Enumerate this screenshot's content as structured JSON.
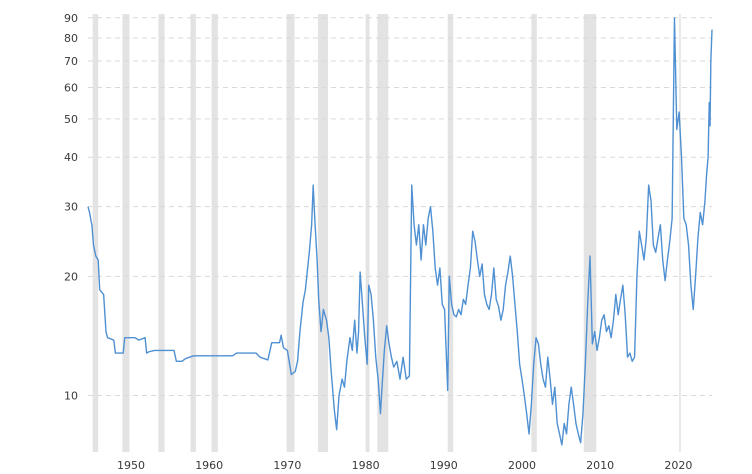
{
  "chart_data": {
    "type": "line",
    "title": "",
    "xlabel": "",
    "ylabel": "",
    "y_scale": "log",
    "ylim": [
      7.2,
      92
    ],
    "xlim": [
      1944.5,
      2024.3
    ],
    "y_ticks": [
      {
        "value": 10,
        "label": "10"
      },
      {
        "value": 20,
        "label": "20"
      },
      {
        "value": 30,
        "label": "30"
      },
      {
        "value": 40,
        "label": "40"
      },
      {
        "value": 50,
        "label": "50"
      },
      {
        "value": 60,
        "label": "60"
      },
      {
        "value": 70,
        "label": "70"
      },
      {
        "value": 80,
        "label": "80"
      },
      {
        "value": 90,
        "label": "90"
      }
    ],
    "x_ticks": [
      {
        "value": 1950,
        "label": "1950"
      },
      {
        "value": 1960,
        "label": "1960"
      },
      {
        "value": 1970,
        "label": "1970"
      },
      {
        "value": 1980,
        "label": "1980"
      },
      {
        "value": 1990,
        "label": "1990"
      },
      {
        "value": 2000,
        "label": "2000"
      },
      {
        "value": 2010,
        "label": "2010"
      },
      {
        "value": 2020,
        "label": "2020"
      }
    ],
    "grid": true,
    "recessions": [
      [
        1945.1,
        1945.8
      ],
      [
        1948.9,
        1949.8
      ],
      [
        1953.5,
        1954.3
      ],
      [
        1957.6,
        1958.3
      ],
      [
        1960.3,
        1961.1
      ],
      [
        1969.9,
        1970.9
      ],
      [
        1973.9,
        1975.2
      ],
      [
        1980.0,
        1980.5
      ],
      [
        1981.5,
        1982.9
      ],
      [
        1990.5,
        1991.2
      ],
      [
        2001.2,
        2001.9
      ],
      [
        2007.9,
        2009.5
      ],
      [
        2020.1,
        2020.3
      ]
    ],
    "colors": {
      "line": "#4f90d2",
      "recession": "#e3e3e3",
      "grid": "#d9d9d9",
      "text": "#3a3a3a"
    },
    "series": [
      {
        "values": [
          [
            1944.5,
            30
          ],
          [
            1944.7,
            29
          ],
          [
            1944.9,
            27.5
          ],
          [
            1945.0,
            27
          ],
          [
            1945.2,
            24
          ],
          [
            1945.5,
            22.5
          ],
          [
            1945.8,
            22
          ],
          [
            1946.0,
            18.5
          ],
          [
            1946.5,
            18
          ],
          [
            1946.8,
            14.5
          ],
          [
            1947.0,
            14
          ],
          [
            1947.8,
            13.8
          ],
          [
            1948.0,
            12.8
          ],
          [
            1949.0,
            12.8
          ],
          [
            1949.2,
            14
          ],
          [
            1950.5,
            14
          ],
          [
            1951.0,
            13.8
          ],
          [
            1951.8,
            14
          ],
          [
            1952.0,
            12.8
          ],
          [
            1952.3,
            12.9
          ],
          [
            1953.0,
            13
          ],
          [
            1955.5,
            13
          ],
          [
            1955.8,
            12.2
          ],
          [
            1956.5,
            12.2
          ],
          [
            1957.0,
            12.4
          ],
          [
            1958.0,
            12.6
          ],
          [
            1963.0,
            12.6
          ],
          [
            1963.5,
            12.8
          ],
          [
            1966.0,
            12.8
          ],
          [
            1966.5,
            12.5
          ],
          [
            1967.5,
            12.3
          ],
          [
            1968.0,
            13.6
          ],
          [
            1969.0,
            13.6
          ],
          [
            1969.2,
            14.2
          ],
          [
            1969.5,
            13.2
          ],
          [
            1970.0,
            13.0
          ],
          [
            1970.5,
            11.3
          ],
          [
            1971.0,
            11.5
          ],
          [
            1971.3,
            12.2
          ],
          [
            1971.6,
            14.5
          ],
          [
            1972.0,
            17.2
          ],
          [
            1972.3,
            18.5
          ],
          [
            1972.8,
            23
          ],
          [
            1973.1,
            27
          ],
          [
            1973.3,
            34
          ],
          [
            1973.5,
            28
          ],
          [
            1973.8,
            22
          ],
          [
            1974.0,
            17.5
          ],
          [
            1974.3,
            14.5
          ],
          [
            1974.6,
            16.5
          ],
          [
            1975.0,
            15.5
          ],
          [
            1975.3,
            14.0
          ],
          [
            1975.6,
            11.5
          ],
          [
            1976.0,
            9.2
          ],
          [
            1976.3,
            8.2
          ],
          [
            1976.6,
            10.0
          ],
          [
            1977.0,
            11.0
          ],
          [
            1977.3,
            10.5
          ],
          [
            1977.6,
            12.2
          ],
          [
            1978.0,
            14.0
          ],
          [
            1978.3,
            13.0
          ],
          [
            1978.6,
            15.5
          ],
          [
            1978.9,
            12.8
          ],
          [
            1979.1,
            14.5
          ],
          [
            1979.3,
            20.5
          ],
          [
            1979.6,
            17.0
          ],
          [
            1979.9,
            14.0
          ],
          [
            1980.2,
            12.0
          ],
          [
            1980.4,
            19.0
          ],
          [
            1980.7,
            18.0
          ],
          [
            1981.0,
            15.5
          ],
          [
            1981.3,
            12.5
          ],
          [
            1981.6,
            11.0
          ],
          [
            1981.9,
            9.0
          ],
          [
            1982.1,
            10.5
          ],
          [
            1982.4,
            13.0
          ],
          [
            1982.7,
            15.0
          ],
          [
            1983.0,
            13.5
          ],
          [
            1983.3,
            12.5
          ],
          [
            1983.6,
            11.8
          ],
          [
            1984.0,
            12.2
          ],
          [
            1984.4,
            11.0
          ],
          [
            1984.8,
            12.5
          ],
          [
            1985.2,
            11.0
          ],
          [
            1985.6,
            11.2
          ],
          [
            1985.9,
            34.0
          ],
          [
            1986.2,
            27.0
          ],
          [
            1986.5,
            24.0
          ],
          [
            1986.8,
            27.0
          ],
          [
            1987.1,
            22.0
          ],
          [
            1987.4,
            27.0
          ],
          [
            1987.7,
            24.0
          ],
          [
            1988.0,
            28.0
          ],
          [
            1988.3,
            30.0
          ],
          [
            1988.6,
            26.0
          ],
          [
            1988.9,
            21.0
          ],
          [
            1989.2,
            19.0
          ],
          [
            1989.5,
            21.0
          ],
          [
            1989.8,
            17.0
          ],
          [
            1990.1,
            16.5
          ],
          [
            1990.5,
            10.3
          ],
          [
            1990.7,
            20.0
          ],
          [
            1991.0,
            17.0
          ],
          [
            1991.3,
            16.0
          ],
          [
            1991.6,
            15.8
          ],
          [
            1991.9,
            16.5
          ],
          [
            1992.2,
            16.0
          ],
          [
            1992.5,
            17.5
          ],
          [
            1992.8,
            17.0
          ],
          [
            1993.1,
            19.0
          ],
          [
            1993.4,
            21.0
          ],
          [
            1993.7,
            26.0
          ],
          [
            1994.0,
            24.5
          ],
          [
            1994.3,
            22.0
          ],
          [
            1994.6,
            20.0
          ],
          [
            1994.9,
            21.5
          ],
          [
            1995.2,
            18.0
          ],
          [
            1995.5,
            17.0
          ],
          [
            1995.8,
            16.5
          ],
          [
            1996.1,
            18.0
          ],
          [
            1996.4,
            21.0
          ],
          [
            1996.7,
            17.5
          ],
          [
            1997.0,
            16.8
          ],
          [
            1997.3,
            15.5
          ],
          [
            1997.6,
            16.5
          ],
          [
            1997.9,
            19.0
          ],
          [
            1998.2,
            20.5
          ],
          [
            1998.5,
            22.5
          ],
          [
            1998.8,
            20.0
          ],
          [
            1999.1,
            17.0
          ],
          [
            1999.4,
            14.5
          ],
          [
            1999.7,
            12.0
          ],
          [
            2000.0,
            11.0
          ],
          [
            2000.3,
            10.0
          ],
          [
            2000.6,
            9.0
          ],
          [
            2000.9,
            8.0
          ],
          [
            2001.2,
            9.5
          ],
          [
            2001.5,
            12.0
          ],
          [
            2001.8,
            14.0
          ],
          [
            2002.1,
            13.5
          ],
          [
            2002.4,
            12.0
          ],
          [
            2002.7,
            11.0
          ],
          [
            2003.0,
            10.5
          ],
          [
            2003.3,
            12.5
          ],
          [
            2003.6,
            11.0
          ],
          [
            2003.9,
            9.5
          ],
          [
            2004.2,
            10.5
          ],
          [
            2004.5,
            8.5
          ],
          [
            2004.8,
            8.0
          ],
          [
            2005.1,
            7.5
          ],
          [
            2005.4,
            8.5
          ],
          [
            2005.7,
            8.0
          ],
          [
            2006.0,
            9.5
          ],
          [
            2006.3,
            10.5
          ],
          [
            2006.6,
            9.5
          ],
          [
            2006.9,
            8.5
          ],
          [
            2007.2,
            8.0
          ],
          [
            2007.5,
            7.6
          ],
          [
            2007.8,
            9.0
          ],
          [
            2008.1,
            12.0
          ],
          [
            2008.4,
            17.0
          ],
          [
            2008.7,
            22.5
          ],
          [
            2009.0,
            13.5
          ],
          [
            2009.3,
            14.5
          ],
          [
            2009.6,
            13.0
          ],
          [
            2009.9,
            14.0
          ],
          [
            2010.2,
            15.5
          ],
          [
            2010.5,
            16.0
          ],
          [
            2010.8,
            14.5
          ],
          [
            2011.1,
            15.0
          ],
          [
            2011.4,
            14.0
          ],
          [
            2011.7,
            15.5
          ],
          [
            2012.0,
            18.0
          ],
          [
            2012.3,
            16.0
          ],
          [
            2012.6,
            17.5
          ],
          [
            2012.9,
            19.0
          ],
          [
            2013.2,
            16.0
          ],
          [
            2013.5,
            12.5
          ],
          [
            2013.8,
            12.8
          ],
          [
            2014.1,
            12.2
          ],
          [
            2014.4,
            12.5
          ],
          [
            2014.7,
            20.0
          ],
          [
            2015.0,
            26.0
          ],
          [
            2015.3,
            24.0
          ],
          [
            2015.6,
            22.0
          ],
          [
            2015.9,
            25.0
          ],
          [
            2016.2,
            34.0
          ],
          [
            2016.5,
            31.0
          ],
          [
            2016.8,
            24.0
          ],
          [
            2017.1,
            23.0
          ],
          [
            2017.4,
            25.0
          ],
          [
            2017.7,
            27.0
          ],
          [
            2018.0,
            22.0
          ],
          [
            2018.3,
            19.5
          ],
          [
            2018.6,
            22.0
          ],
          [
            2018.9,
            24.5
          ],
          [
            2019.2,
            28.0
          ],
          [
            2019.5,
            90.0
          ],
          [
            2019.8,
            47.0
          ],
          [
            2020.1,
            52.0
          ],
          [
            2020.4,
            40.0
          ],
          [
            2020.7,
            28.0
          ],
          [
            2021.0,
            27.0
          ],
          [
            2021.3,
            24.0
          ],
          [
            2021.6,
            19.0
          ],
          [
            2021.9,
            16.5
          ],
          [
            2022.2,
            20.0
          ],
          [
            2022.5,
            25.0
          ],
          [
            2022.8,
            29.0
          ],
          [
            2023.1,
            27.0
          ],
          [
            2023.4,
            31.0
          ],
          [
            2023.6,
            36.0
          ],
          [
            2023.8,
            40.0
          ],
          [
            2023.95,
            55.0
          ],
          [
            2024.05,
            48.0
          ],
          [
            2024.15,
            70.0
          ],
          [
            2024.3,
            84.0
          ]
        ]
      }
    ]
  }
}
